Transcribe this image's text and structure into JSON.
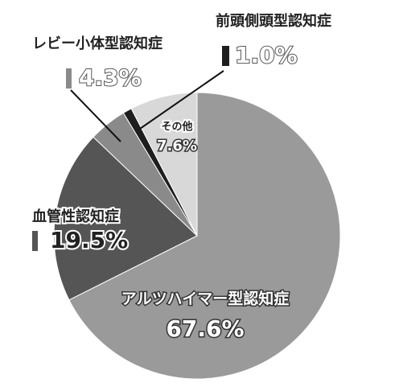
{
  "chart_data": {
    "type": "pie",
    "categories": [
      "アルツハイマー型認知症",
      "血管性認知症",
      "レビー小体型認知症",
      "前頭側頭型認知症",
      "その他"
    ],
    "values": [
      67.6,
      19.5,
      4.3,
      1.0,
      7.6
    ],
    "value_labels": [
      "67.6%",
      "19.5%",
      "4.3%",
      "1.0%",
      "7.6%"
    ],
    "colors": [
      "#9a9a9a",
      "#555555",
      "#8a8a8a",
      "#1e1e1e",
      "#d8d8d8"
    ]
  }
}
